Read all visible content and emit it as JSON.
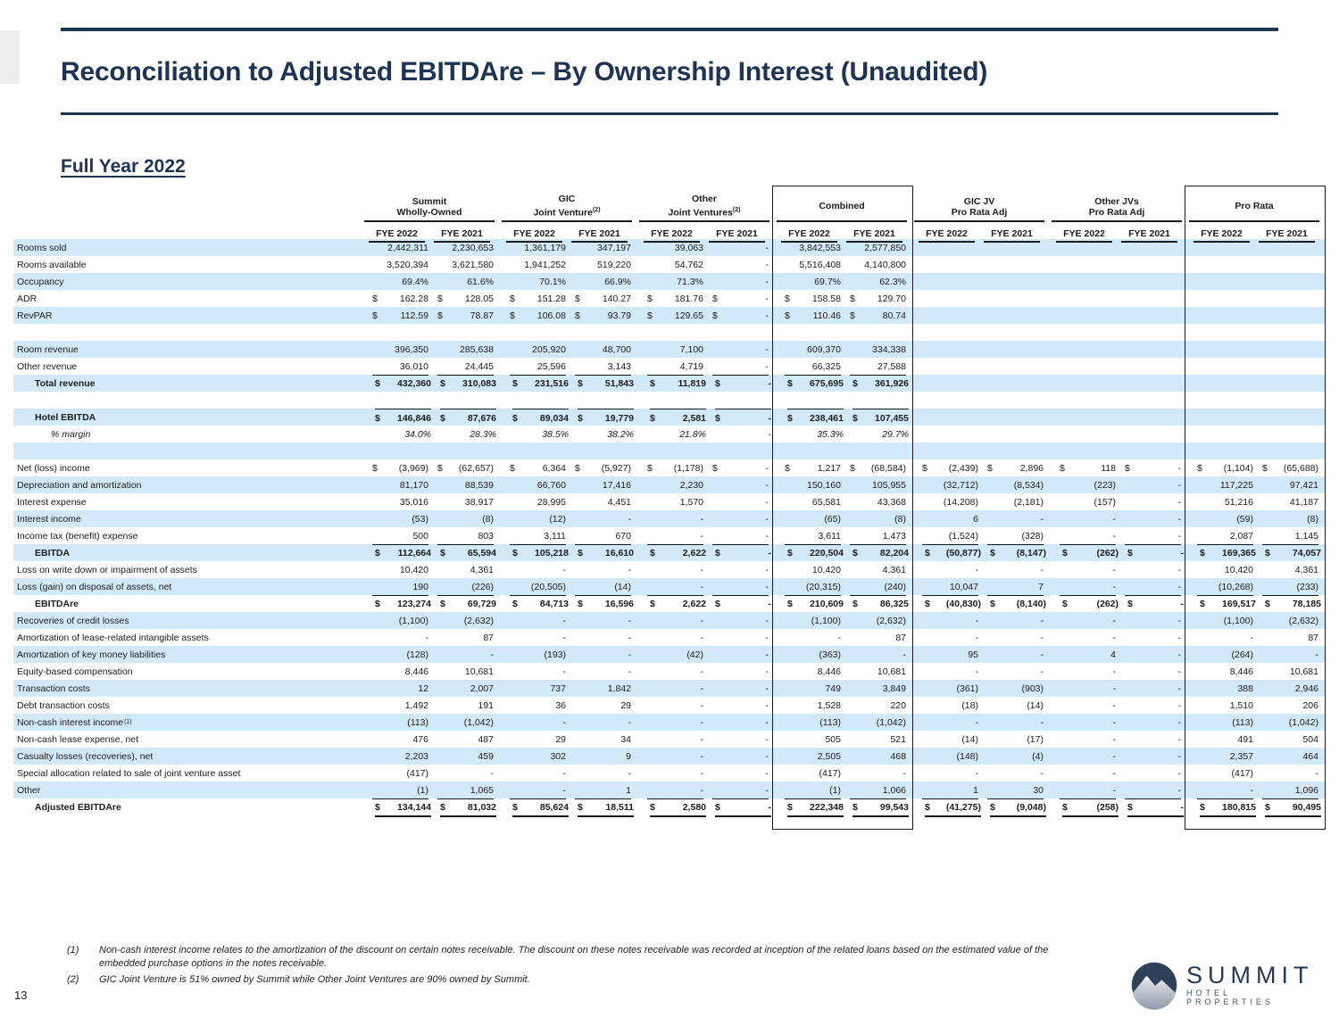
{
  "title": "Reconciliation to Adjusted EBITDAre – By Ownership Interest (Unaudited)",
  "subtitle": "Full Year 2022",
  "page_number": "13",
  "colors": {
    "accent_navy": "#1f3352",
    "row_highlight_blue": "#d2e9f9",
    "rule_black": "#1b1b1b"
  },
  "logo": {
    "name": "SUMMIT",
    "tagline": "HOTEL PROPERTIES"
  },
  "footnotes": [
    {
      "num": "(1)",
      "text": "Non-cash interest income relates to the amortization of the discount on certain notes receivable. The discount on these notes receivable was recorded at inception of the related loans based on the estimated value of the embedded purchase options in the notes receivable."
    },
    {
      "num": "(2)",
      "text": "GIC Joint Venture is 51% owned by Summit while Other Joint Ventures are 90% owned by Summit."
    }
  ],
  "table": {
    "year_headers": [
      "FYE 2022",
      "FYE 2021"
    ],
    "groups": [
      {
        "line1": "Summit",
        "line2": "Wholly-Owned",
        "sup": "",
        "boxed": false
      },
      {
        "line1": "GIC",
        "line2": "Joint Venture",
        "sup": "(2)",
        "boxed": false
      },
      {
        "line1": "Other",
        "line2": "Joint Ventures",
        "sup": "(2)",
        "boxed": false
      },
      {
        "line1": "Combined",
        "line2": "",
        "sup": "",
        "boxed": true
      },
      {
        "line1": "GIC JV",
        "line2": "Pro Rata Adj",
        "sup": "",
        "boxed": false
      },
      {
        "line1": "Other JVs",
        "line2": "Pro Rata Adj",
        "sup": "",
        "boxed": false
      },
      {
        "line1": "Pro Rata",
        "line2": "",
        "sup": "",
        "boxed": true
      }
    ],
    "rows": [
      {
        "label": "Rooms sold",
        "shade": "blue",
        "cells": [
          "2,442,311",
          "2,230,653",
          "1,361,179",
          "347,197",
          "39,063",
          "-",
          "3,842,553",
          "2,577,850",
          "",
          "",
          "",
          "",
          "",
          ""
        ]
      },
      {
        "label": "Rooms available",
        "shade": "white",
        "cells": [
          "3,520,394",
          "3,621,580",
          "1,941,252",
          "519,220",
          "54,762",
          "-",
          "5,516,408",
          "4,140,800",
          "",
          "",
          "",
          "",
          "",
          ""
        ]
      },
      {
        "label": "Occupancy",
        "shade": "blue",
        "cells": [
          "69.4%",
          "61.6%",
          "70.1%",
          "66.9%",
          "71.3%",
          "-",
          "69.7%",
          "62.3%",
          "",
          "",
          "",
          "",
          "",
          ""
        ]
      },
      {
        "label": "ADR",
        "shade": "white",
        "cells": [
          "$ 162.28",
          "$ 128.05",
          "$ 151.28",
          "$ 140.27",
          "$ 181.76",
          "$ -",
          "$ 158.58",
          "$ 129.70",
          "",
          "",
          "",
          "",
          "",
          ""
        ]
      },
      {
        "label": "RevPAR",
        "shade": "blue",
        "cells": [
          "$ 112.59",
          "$ 78.87",
          "$ 106.08",
          "$ 93.79",
          "$ 129.65",
          "$ -",
          "$ 110.46",
          "$ 80.74",
          "",
          "",
          "",
          "",
          "",
          ""
        ]
      },
      {
        "label": "",
        "shade": "white",
        "spacer": true
      },
      {
        "label": "Room revenue",
        "shade": "blue",
        "cells": [
          "396,350",
          "285,638",
          "205,920",
          "48,700",
          "7,100",
          "-",
          "609,370",
          "334,338",
          "",
          "",
          "",
          "",
          "",
          ""
        ]
      },
      {
        "label": "Other revenue",
        "shade": "white",
        "rb": 8,
        "cells": [
          "36,010",
          "24,445",
          "25,596",
          "3,143",
          "4,719",
          "-",
          "66,325",
          "27,588",
          "",
          "",
          "",
          "",
          "",
          ""
        ]
      },
      {
        "label": "Total revenue",
        "shade": "blue",
        "style": "bold",
        "indent": 1,
        "cells": [
          "$ 432,360",
          "$ 310,083",
          "$ 231,516",
          "$ 51,843",
          "$ 11,819",
          "$ -",
          "$ 675,695",
          "$ 361,926",
          "",
          "",
          "",
          "",
          "",
          ""
        ]
      },
      {
        "label": "",
        "shade": "white",
        "spacer": true
      },
      {
        "label": "Hotel EBITDA",
        "shade": "blue",
        "style": "bold",
        "indent": 1,
        "ra": 8,
        "cells": [
          "$ 146,846",
          "$ 87,676",
          "$ 89,034",
          "$ 19,779",
          "$ 2,581",
          "$ -",
          "$ 238,461",
          "$ 107,455",
          "",
          "",
          "",
          "",
          "",
          ""
        ]
      },
      {
        "label": "% margin",
        "shade": "white",
        "style": "italic",
        "indent": 2,
        "cells": [
          "34.0%",
          "28.3%",
          "38.5%",
          "38.2%",
          "21.8%",
          "-",
          "35.3%",
          "29.7%",
          "",
          "",
          "",
          "",
          "",
          ""
        ]
      },
      {
        "label": "",
        "shade": "blue",
        "spacer": true
      },
      {
        "label": "Net (loss) income",
        "shade": "white",
        "cells": [
          "$ (3,969)",
          "$ (62,657)",
          "$ 6,364",
          "$ (5,927)",
          "$ (1,178)",
          "$ -",
          "$ 1,217",
          "$ (68,584)",
          "$ (2,439)",
          "$ 2,896",
          "$ 118",
          "$ -",
          "$ (1,104)",
          "$ (65,688)"
        ]
      },
      {
        "label": "Depreciation and amortization",
        "shade": "blue",
        "cells": [
          "81,170",
          "88,539",
          "66,760",
          "17,416",
          "2,230",
          "-",
          "150,160",
          "105,955",
          "(32,712)",
          "(8,534)",
          "(223)",
          "-",
          "117,225",
          "97,421"
        ]
      },
      {
        "label": "Interest expense",
        "shade": "white",
        "cells": [
          "35,016",
          "38,917",
          "28,995",
          "4,451",
          "1,570",
          "-",
          "65,581",
          "43,368",
          "(14,208)",
          "(2,181)",
          "(157)",
          "-",
          "51,216",
          "41,187"
        ]
      },
      {
        "label": "Interest income",
        "shade": "blue",
        "cells": [
          "(53)",
          "(8)",
          "(12)",
          "-",
          "-",
          "-",
          "(65)",
          "(8)",
          "6",
          "-",
          "-",
          "-",
          "(59)",
          "(8)"
        ]
      },
      {
        "label": "Income tax (benefit) expense",
        "shade": "white",
        "rb": 14,
        "cells": [
          "500",
          "803",
          "3,111",
          "670",
          "-",
          "-",
          "3,611",
          "1,473",
          "(1,524)",
          "(328)",
          "-",
          "-",
          "2,087",
          "1,145"
        ]
      },
      {
        "label": "EBITDA",
        "shade": "blue",
        "style": "bold",
        "indent": 1,
        "cells": [
          "$ 112,664",
          "$ 65,594",
          "$ 105,218",
          "$ 16,610",
          "$ 2,622",
          "$ -",
          "$ 220,504",
          "$ 82,204",
          "$ (50,877)",
          "$ (8,147)",
          "$ (262)",
          "$ -",
          "$ 169,365",
          "$ 74,057"
        ]
      },
      {
        "label": "Loss on write down or impairment of assets",
        "shade": "white",
        "cells": [
          "10,420",
          "4,361",
          "-",
          "-",
          "-",
          "-",
          "10,420",
          "4,361",
          "-",
          "-",
          "-",
          "-",
          "10,420",
          "4,361"
        ]
      },
      {
        "label": "Loss (gain) on disposal of assets, net",
        "shade": "blue",
        "rb": 14,
        "cells": [
          "190",
          "(226)",
          "(20,505)",
          "(14)",
          "-",
          "-",
          "(20,315)",
          "(240)",
          "10,047",
          "7",
          "-",
          "-",
          "(10,268)",
          "(233)"
        ]
      },
      {
        "label": "EBITDAre",
        "shade": "white",
        "style": "bold",
        "indent": 1,
        "cells": [
          "$ 123,274",
          "$ 69,729",
          "$ 84,713",
          "$ 16,596",
          "$ 2,622",
          "$ -",
          "$ 210,609",
          "$ 86,325",
          "$ (40,830)",
          "$ (8,140)",
          "$ (262)",
          "$ -",
          "$ 169,517",
          "$ 78,185"
        ]
      },
      {
        "label": "Recoveries of credit losses",
        "shade": "blue",
        "cells": [
          "(1,100)",
          "(2,632)",
          "-",
          "-",
          "-",
          "-",
          "(1,100)",
          "(2,632)",
          "-",
          "-",
          "-",
          "-",
          "(1,100)",
          "(2,632)"
        ]
      },
      {
        "label": "Amortization of lease-related intangible assets",
        "shade": "white",
        "cells": [
          "-",
          "87",
          "-",
          "-",
          "-",
          "-",
          "-",
          "87",
          "-",
          "-",
          "-",
          "-",
          "-",
          "87"
        ]
      },
      {
        "label": "Amortization of key money liabilities",
        "shade": "blue",
        "cells": [
          "(128)",
          "-",
          "(193)",
          "-",
          "(42)",
          "-",
          "(363)",
          "-",
          "95",
          "-",
          "4",
          "-",
          "(264)",
          "-"
        ]
      },
      {
        "label": "Equity-based compensation",
        "shade": "white",
        "cells": [
          "8,446",
          "10,681",
          "-",
          "-",
          "-",
          "-",
          "8,446",
          "10,681",
          "-",
          "-",
          "-",
          "-",
          "8,446",
          "10,681"
        ]
      },
      {
        "label": "Transaction costs",
        "shade": "blue",
        "cells": [
          "12",
          "2,007",
          "737",
          "1,842",
          "-",
          "-",
          "749",
          "3,849",
          "(361)",
          "(903)",
          "-",
          "-",
          "388",
          "2,946"
        ]
      },
      {
        "label": "Debt transaction costs",
        "shade": "white",
        "cells": [
          "1,492",
          "191",
          "36",
          "29",
          "-",
          "-",
          "1,528",
          "220",
          "(18)",
          "(14)",
          "-",
          "-",
          "1,510",
          "206"
        ]
      },
      {
        "label": "Non-cash interest income",
        "sup": "(1)",
        "shade": "blue",
        "cells": [
          "(113)",
          "(1,042)",
          "-",
          "-",
          "-",
          "-",
          "(113)",
          "(1,042)",
          "-",
          "-",
          "-",
          "-",
          "(113)",
          "(1,042)"
        ]
      },
      {
        "label": "Non-cash lease expense, net",
        "shade": "white",
        "cells": [
          "476",
          "487",
          "29",
          "34",
          "-",
          "-",
          "505",
          "521",
          "(14)",
          "(17)",
          "-",
          "-",
          "491",
          "504"
        ]
      },
      {
        "label": "Casualty losses (recoveries), net",
        "shade": "blue",
        "cells": [
          "2,203",
          "459",
          "302",
          "9",
          "-",
          "-",
          "2,505",
          "468",
          "(148)",
          "(4)",
          "-",
          "-",
          "2,357",
          "464"
        ]
      },
      {
        "label": "Special allocation related to sale of joint venture asset",
        "shade": "white",
        "cells": [
          "(417)",
          "-",
          "-",
          "-",
          "-",
          "-",
          "(417)",
          "-",
          "-",
          "-",
          "-",
          "-",
          "(417)",
          "-"
        ]
      },
      {
        "label": "Other",
        "shade": "blue",
        "rb": 14,
        "cells": [
          "(1)",
          "1,065",
          "-",
          "1",
          "-",
          "-",
          "(1)",
          "1,066",
          "1",
          "30",
          "-",
          "-",
          "-",
          "1,096"
        ]
      },
      {
        "label": "Adjusted EBITDAre",
        "shade": "white",
        "style": "bold",
        "indent": 1,
        "rb2": 14,
        "cells": [
          "$ 134,144",
          "$ 81,032",
          "$ 85,624",
          "$ 18,511",
          "$ 2,580",
          "$ -",
          "$ 222,348",
          "$ 99,543",
          "$ (41,275)",
          "$ (9,048)",
          "$ (258)",
          "$ -",
          "$ 180,815",
          "$ 90,495"
        ]
      }
    ]
  }
}
